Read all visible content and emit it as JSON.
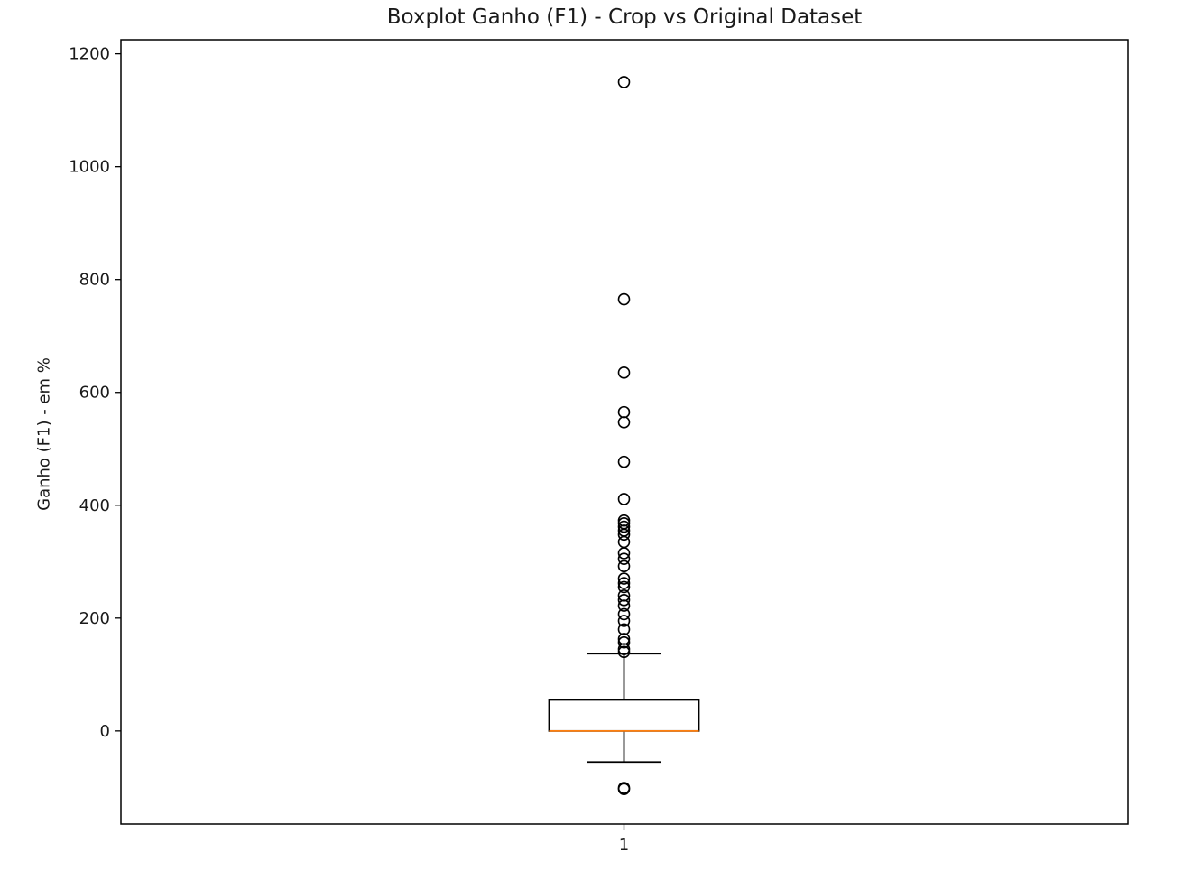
{
  "chart_data": {
    "type": "boxplot",
    "title": "Boxplot Ganho (F1) - Crop vs Original Dataset",
    "xlabel": "",
    "ylabel": "Ganho (F1) - em %",
    "categories": [
      "1"
    ],
    "ylim": [
      -165,
      1225
    ],
    "yticks": [
      0,
      200,
      400,
      600,
      800,
      1000,
      1200
    ],
    "ytick_labels": [
      "0",
      "200",
      "400",
      "600",
      "800",
      "1000",
      "1200"
    ],
    "grid": false,
    "box": {
      "whisker_low": -55,
      "q1": 0,
      "median": 0,
      "q3": 55,
      "whisker_high": 137
    },
    "outliers": [
      1150,
      765,
      635,
      565,
      547,
      477,
      411,
      373,
      368,
      362,
      355,
      348,
      335,
      315,
      305,
      292,
      270,
      262,
      255,
      240,
      232,
      222,
      207,
      195,
      180,
      163,
      157,
      145,
      140,
      -103,
      -101
    ],
    "colors": {
      "box": "#000000",
      "median": "#ff7f0e",
      "flier": "#000000"
    }
  }
}
